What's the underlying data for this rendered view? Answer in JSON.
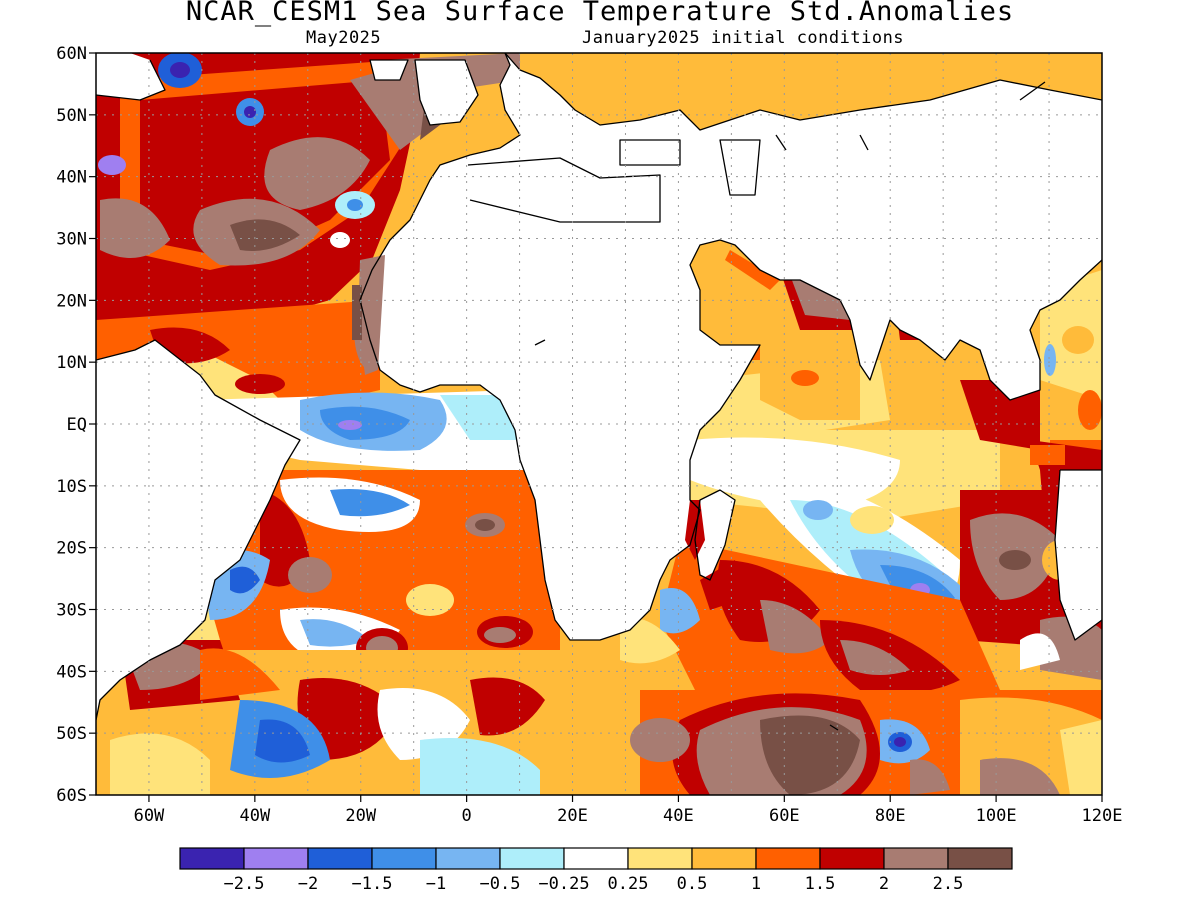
{
  "title": "NCAR_CESM1 Sea Surface Temperature Std.Anomalies",
  "subtitle_left": "May2025",
  "subtitle_right": "January2025 initial conditions",
  "map": {
    "lon_range": [
      -70,
      120
    ],
    "lat_range": [
      -60,
      60
    ],
    "lat_labels": [
      "60N",
      "50N",
      "40N",
      "30N",
      "20N",
      "10N",
      "EQ",
      "10S",
      "20S",
      "30S",
      "40S",
      "50S",
      "60S"
    ],
    "lon_labels": [
      "60W",
      "40W",
      "20W",
      "0",
      "20E",
      "40E",
      "60E",
      "80E",
      "100E",
      "120E"
    ],
    "grid": true
  },
  "colorbar": {
    "colors": [
      "#3a23b0",
      "#9f7ff0",
      "#1f5fd8",
      "#3f8fe8",
      "#77b5f2",
      "#aeeefa",
      "#ffffff",
      "#ffe37a",
      "#ffbb3a",
      "#ff6000",
      "#c00000",
      "#a87c72",
      "#785046"
    ],
    "labels": [
      "-2.5",
      "-2",
      "-1.5",
      "-1",
      "-0.5",
      "-0.25",
      "0.25",
      "0.5",
      "1",
      "1.5",
      "2",
      "2.5"
    ]
  }
}
